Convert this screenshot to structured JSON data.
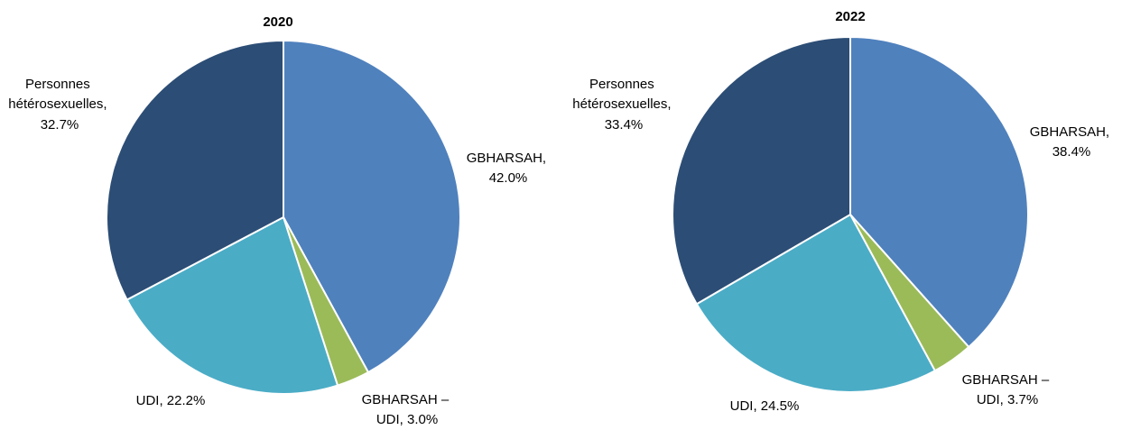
{
  "chart_data": [
    {
      "type": "pie",
      "title": "2020",
      "colors": [
        "#4f81bd",
        "#9bbb59",
        "#4bacc6",
        "#2c4d75"
      ],
      "slices": [
        {
          "label": "GBHARSAH,",
          "value_label": "42.0%",
          "value": 42.0
        },
        {
          "label": "GBHARSAH –",
          "value_label": "UDI, 3.0%",
          "value": 3.0
        },
        {
          "label": "UDI, 22.2%",
          "value_label": "",
          "value": 22.2
        },
        {
          "label": "Personnes hétérosexuelles,",
          "value_label": "32.7%",
          "value": 32.7
        }
      ]
    },
    {
      "type": "pie",
      "title": "2022",
      "colors": [
        "#4f81bd",
        "#9bbb59",
        "#4bacc6",
        "#2c4d75"
      ],
      "slices": [
        {
          "label": "GBHARSAH,",
          "value_label": "38.4%",
          "value": 38.4
        },
        {
          "label": "GBHARSAH –",
          "value_label": "UDI, 3.7%",
          "value": 3.7
        },
        {
          "label": "UDI, 24.5%",
          "value_label": "",
          "value": 24.5
        },
        {
          "label": "Personnes hétérosexuelles,",
          "value_label": "33.4%",
          "value": 33.4
        }
      ]
    }
  ]
}
